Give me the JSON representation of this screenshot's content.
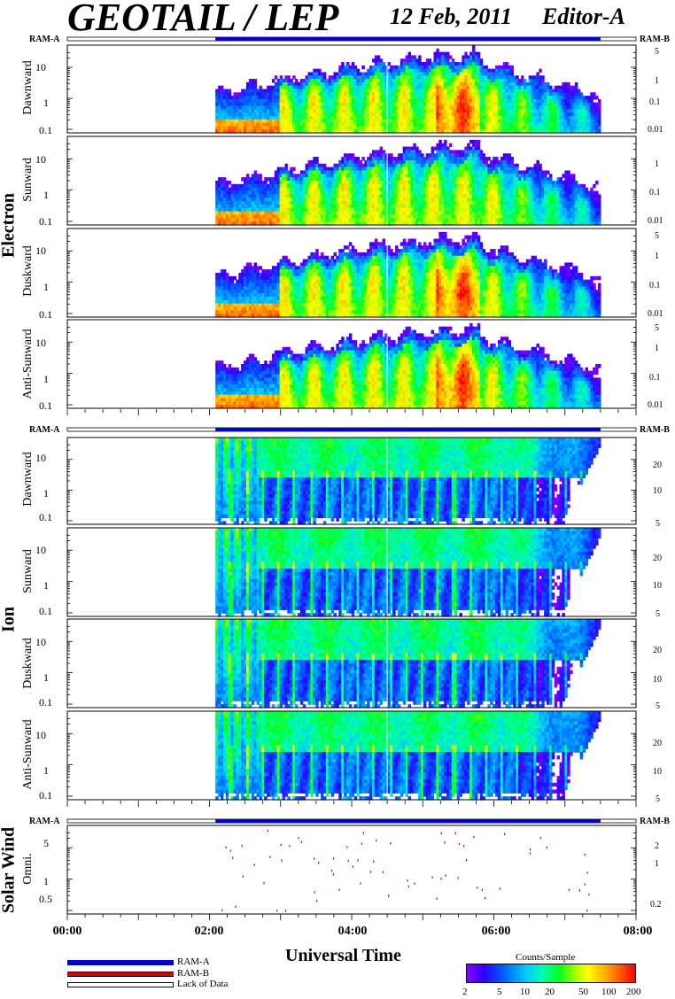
{
  "header": {
    "title": "GEOTAIL / LEP",
    "date": "12 Feb, 2011",
    "editor": "Editor-A"
  },
  "ram": {
    "a": "RAM-A",
    "b": "RAM-B"
  },
  "groups": {
    "electron": "Electron",
    "ion": "Ion",
    "solar_wind": "Solar Wind"
  },
  "panel_labels": {
    "dawnward": "Dawnward",
    "sunward": "Sunward",
    "duskward": "Duskward",
    "anti_sunward": "Anti-Sunward",
    "omni": "Omni."
  },
  "left_ticks": {
    "t10": "10",
    "t1": "1",
    "t01": "0.1",
    "t5": "5",
    "t05": "0.5"
  },
  "electron_right_ticks": {
    "r5": "5",
    "r1": "1",
    "r01": "0.1",
    "r001": "0.01"
  },
  "ion_right_ticks": {
    "r20": "20",
    "r10": "10",
    "r5": "5"
  },
  "sw_right_ticks": {
    "r2": "2",
    "r1": "1",
    "r02": "0.2"
  },
  "x_axis": {
    "labels": [
      "00:00",
      "02:00",
      "04:00",
      "06:00",
      "08:00"
    ],
    "title": "Universal Time"
  },
  "legend": {
    "ram_a": "RAM-A",
    "ram_b": "RAM-B",
    "lack": "Lack of Data",
    "colors": {
      "ram_a": "#0000cc",
      "ram_b": "#dd0000"
    }
  },
  "colorbar": {
    "title": "Counts/Sample",
    "ticks": [
      "2",
      "5",
      "10",
      "20",
      "50",
      "100",
      "200"
    ]
  },
  "chart_data": {
    "type": "heatmap",
    "title": "GEOTAIL / LEP",
    "xlabel": "Universal Time",
    "xlim": [
      "00:00",
      "08:00"
    ],
    "data_coverage": {
      "start": "02:05",
      "end": "07:30"
    },
    "colorscale": {
      "label": "Counts/Sample",
      "range": [
        2,
        200
      ],
      "scale": "log"
    },
    "panels": [
      {
        "group": "Electron",
        "name": "Dawnward",
        "yscale": "log"
      },
      {
        "group": "Electron",
        "name": "Sunward",
        "yscale": "log"
      },
      {
        "group": "Electron",
        "name": "Duskward",
        "yscale": "log"
      },
      {
        "group": "Electron",
        "name": "Anti-Sunward",
        "yscale": "log"
      },
      {
        "group": "Ion",
        "name": "Dawnward",
        "yscale": "log"
      },
      {
        "group": "Ion",
        "name": "Sunward",
        "yscale": "log"
      },
      {
        "group": "Ion",
        "name": "Duskward",
        "yscale": "log"
      },
      {
        "group": "Ion",
        "name": "Anti-Sunward",
        "yscale": "log"
      },
      {
        "group": "Solar Wind",
        "name": "Omni.",
        "yscale": "log"
      }
    ]
  }
}
